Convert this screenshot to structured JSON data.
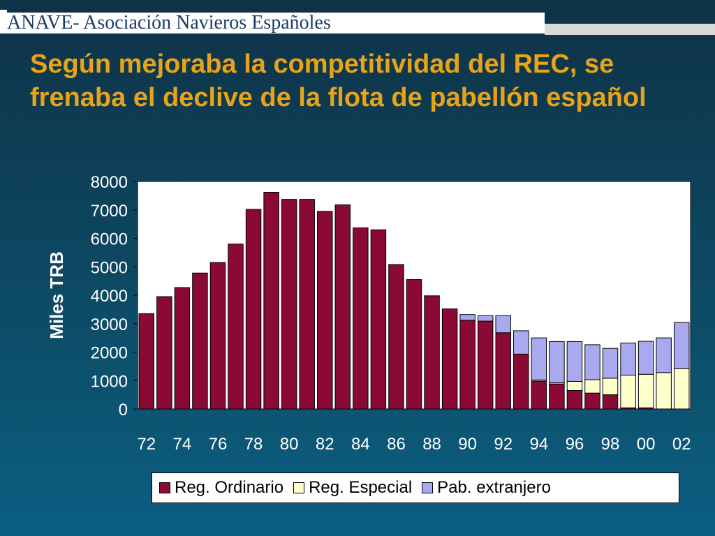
{
  "header": {
    "text": "ANAVE- Asociación Navieros Españoles"
  },
  "title": "Según mejoraba la competitividad del REC, se frenaba el declive de la flota de pabellón español",
  "colors": {
    "ordinario": "#8b0a35",
    "especial": "#ffffcc",
    "extranjero": "#a9a9f0",
    "title": "#e8a317"
  },
  "chart_data": {
    "type": "bar",
    "stacked": true,
    "ylabel": "Miles TRB",
    "ylim": [
      0,
      8000
    ],
    "yticks": [
      0,
      1000,
      2000,
      3000,
      4000,
      5000,
      6000,
      7000,
      8000
    ],
    "categories": [
      "72",
      "73",
      "74",
      "75",
      "76",
      "77",
      "78",
      "79",
      "80",
      "81",
      "82",
      "83",
      "84",
      "85",
      "86",
      "87",
      "88",
      "89",
      "90",
      "91",
      "92",
      "93",
      "94",
      "95",
      "96",
      "97",
      "98",
      "99",
      "00",
      "01",
      "02"
    ],
    "x_tick_labels": [
      "72",
      "74",
      "76",
      "78",
      "80",
      "82",
      "84",
      "86",
      "88",
      "90",
      "92",
      "94",
      "96",
      "98",
      "00",
      "02"
    ],
    "series": [
      {
        "name": "Reg. Ordinario",
        "color": "#8b0a35",
        "values": [
          3350,
          3950,
          4270,
          4780,
          5150,
          5800,
          7020,
          7620,
          7370,
          7370,
          6950,
          7180,
          6370,
          6300,
          5080,
          4550,
          3980,
          3520,
          3120,
          3090,
          2680,
          1930,
          980,
          880,
          650,
          560,
          500,
          40,
          40,
          0,
          0
        ]
      },
      {
        "name": "Reg. Especial",
        "color": "#ffffcc",
        "values": [
          0,
          0,
          0,
          0,
          0,
          0,
          0,
          0,
          0,
          0,
          0,
          0,
          0,
          0,
          0,
          0,
          0,
          0,
          0,
          0,
          0,
          0,
          40,
          40,
          320,
          470,
          580,
          1150,
          1180,
          1280,
          1420
        ]
      },
      {
        "name": "Pab. extranjero",
        "color": "#a9a9f0",
        "values": [
          0,
          0,
          0,
          0,
          0,
          0,
          0,
          0,
          0,
          0,
          0,
          0,
          0,
          0,
          0,
          0,
          0,
          0,
          200,
          190,
          600,
          820,
          1480,
          1450,
          1400,
          1230,
          1050,
          1130,
          1160,
          1220,
          1620
        ]
      }
    ],
    "legend": "bottom"
  }
}
